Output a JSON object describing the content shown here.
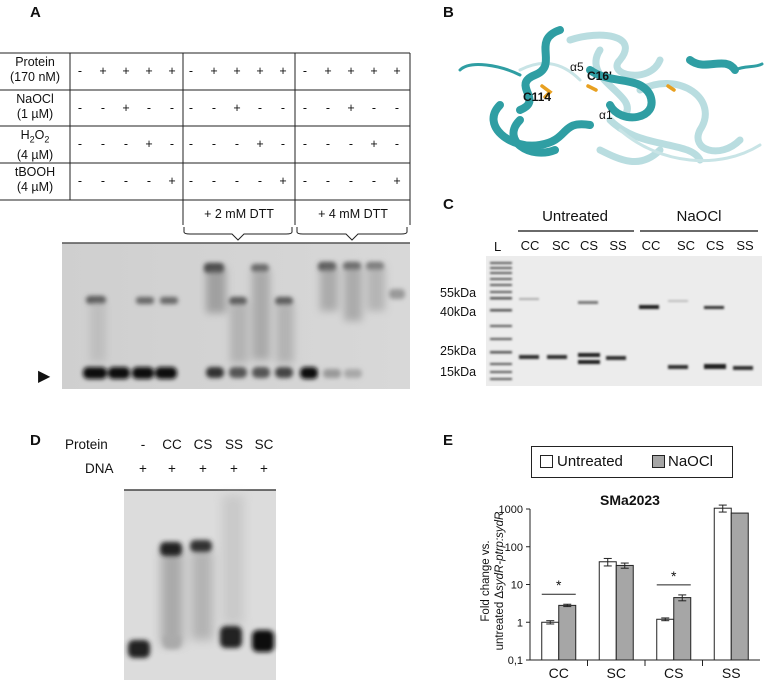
{
  "panel_labels": {
    "a": "A",
    "b": "B",
    "c": "C",
    "d": "D",
    "e": "E"
  },
  "panel_a": {
    "rows": [
      {
        "label_lines": [
          "Protein",
          "(170 nM)"
        ],
        "marks": [
          "-",
          "+",
          "+",
          "+",
          "+",
          "-",
          "+",
          "+",
          "+",
          "+",
          "-",
          "+",
          "+",
          "+",
          "+"
        ]
      },
      {
        "label_lines": [
          "NaOCl",
          "(1 µM)"
        ],
        "marks": [
          "-",
          "-",
          "+",
          "-",
          "-",
          "-",
          "-",
          "+",
          "-",
          "-",
          "-",
          "-",
          "+",
          "-",
          "-"
        ]
      },
      {
        "label_main": "H",
        "label_sub": "2",
        "label_main2": "O",
        "label_sub2": "2",
        "label_line2": "(4 µM)",
        "marks": [
          "-",
          "-",
          "-",
          "+",
          "-",
          "-",
          "-",
          "-",
          "+",
          "-",
          "-",
          "-",
          "-",
          "+",
          "-"
        ]
      },
      {
        "label_lines": [
          "tBOOH",
          "(4 µM)"
        ],
        "marks": [
          "-",
          "-",
          "-",
          "-",
          "+",
          "-",
          "-",
          "-",
          "-",
          "+",
          "-",
          "-",
          "-",
          "-",
          "+"
        ]
      }
    ],
    "dtt_labels": [
      "+ 2 mM DTT",
      "+ 4 mM DTT"
    ],
    "arrow_glyph": "▶"
  },
  "panel_b": {
    "labels": {
      "c114": "C114",
      "c16": "C16'",
      "alpha5": "α5",
      "alpha1": "α1"
    }
  },
  "panel_c": {
    "groups": [
      "Untreated",
      "NaOCl"
    ],
    "ladder_label": "L",
    "lanes": [
      "CC",
      "SC",
      "CS",
      "SS",
      "CC",
      "SC",
      "CS",
      "SS"
    ],
    "markers": [
      "55kDa",
      "40kDa",
      "25kDa",
      "15kDa"
    ]
  },
  "panel_d": {
    "protein_label": "Protein",
    "dna_label": "DNA",
    "lanes": [
      "-",
      "CC",
      "CS",
      "SS",
      "SC"
    ],
    "dna_marks": [
      "+",
      "+",
      "+",
      "+",
      "+"
    ]
  },
  "panel_e": {
    "legend": {
      "untreated": "Untreated",
      "naocl": "NaOCl"
    },
    "colors": {
      "untreated": "#ffffff",
      "naocl": "#a6a6a6"
    },
    "chart_data": {
      "type": "bar",
      "title": "SMa2023",
      "ylabel_line1": "Fold change vs.",
      "ylabel_line2_prefix": "untreated Δ",
      "ylabel_line2_italic": "sydR-ptrp:sydR",
      "yscale": "log",
      "ylim": [
        0.1,
        1000
      ],
      "yticks": [
        "0,1",
        "1",
        "10",
        "100",
        "1000"
      ],
      "ytick_values": [
        0.1,
        1,
        10,
        100,
        1000
      ],
      "categories": [
        "CC",
        "SC",
        "CS",
        "SS"
      ],
      "series": [
        {
          "name": "Untreated",
          "values": [
            1.0,
            40,
            1.2,
            1050
          ],
          "errors": [
            0.1,
            9,
            0.1,
            220
          ]
        },
        {
          "name": "NaOCl",
          "values": [
            2.8,
            32,
            4.5,
            780
          ],
          "errors": [
            0.2,
            5,
            0.8,
            0
          ]
        }
      ],
      "significance": [
        {
          "category": "CC",
          "mark": "*"
        },
        {
          "category": "CS",
          "mark": "*"
        }
      ]
    }
  }
}
